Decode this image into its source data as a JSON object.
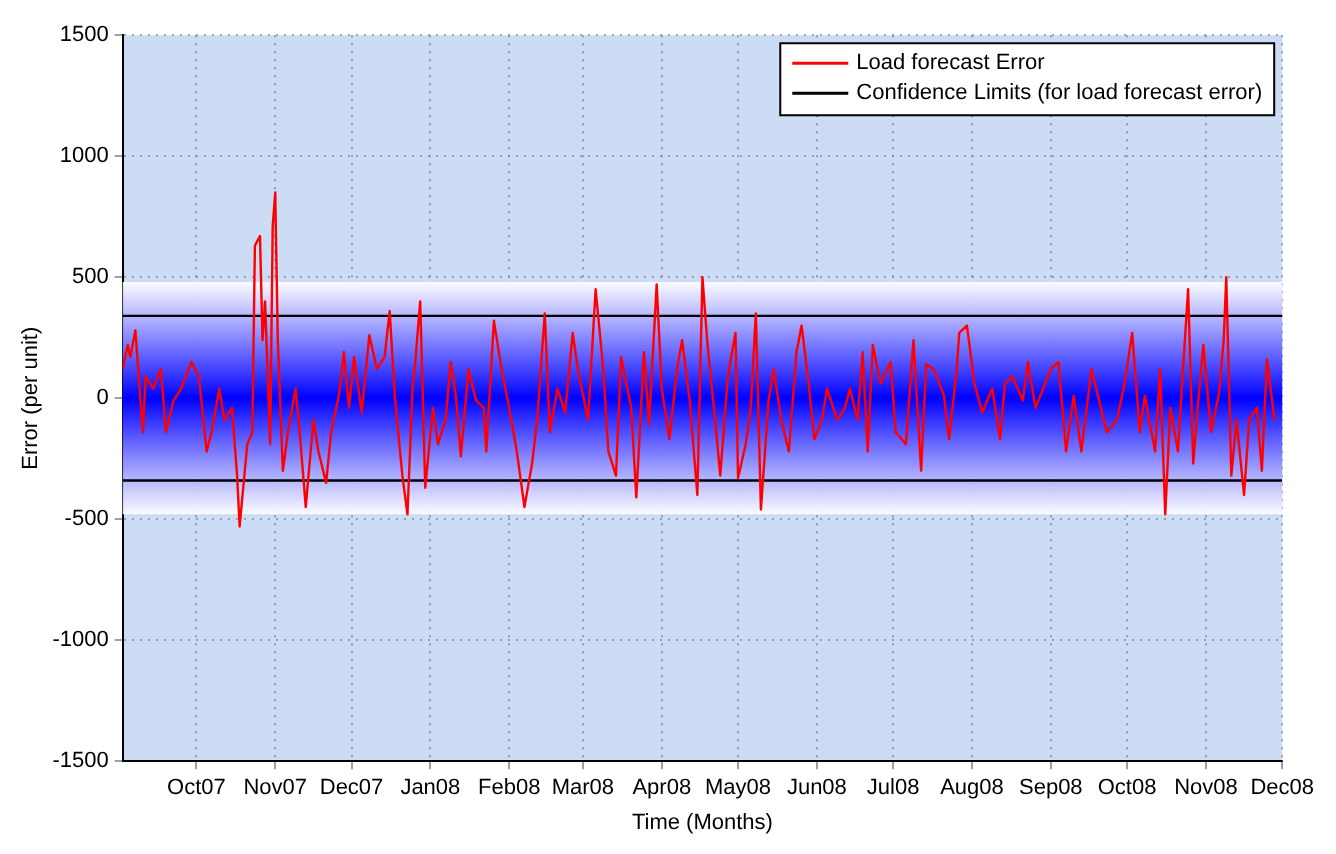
{
  "chart_data": {
    "type": "line",
    "xlabel": "Time (Months)",
    "ylabel": "Error (per unit)",
    "xlim": [
      "2007-09-02",
      "2008-12-01"
    ],
    "xticks": [
      {
        "value": "2007-10-01",
        "label": "Oct07"
      },
      {
        "value": "2007-11-01",
        "label": "Nov07"
      },
      {
        "value": "2007-12-01",
        "label": "Dec07"
      },
      {
        "value": "2008-01-01",
        "label": "Jan08"
      },
      {
        "value": "2008-02-01",
        "label": "Feb08"
      },
      {
        "value": "2008-03-01",
        "label": "Mar08"
      },
      {
        "value": "2008-04-01",
        "label": "Apr08"
      },
      {
        "value": "2008-05-01",
        "label": "May08"
      },
      {
        "value": "2008-06-01",
        "label": "Jun08"
      },
      {
        "value": "2008-07-01",
        "label": "Jul08"
      },
      {
        "value": "2008-08-01",
        "label": "Aug08"
      },
      {
        "value": "2008-09-01",
        "label": "Sep08"
      },
      {
        "value": "2008-10-01",
        "label": "Oct08"
      },
      {
        "value": "2008-11-01",
        "label": "Nov08"
      },
      {
        "value": "2008-12-01",
        "label": "Dec08"
      }
    ],
    "ylim": [
      -1500,
      1500
    ],
    "yticks": [
      -1500,
      -1000,
      -500,
      0,
      500,
      1000,
      1500
    ],
    "grid": true,
    "legend": "top right",
    "marker": "none",
    "line_style": "solid",
    "bands": [
      {
        "axis": "y",
        "from": -480,
        "to": 480,
        "color": "#0000ff"
      }
    ],
    "x": [
      "2007-09-02",
      "2007-09-04",
      "2007-09-05",
      "2007-09-07",
      "2007-09-09",
      "2007-09-10",
      "2007-09-11",
      "2007-09-14",
      "2007-09-17",
      "2007-09-19",
      "2007-09-22",
      "2007-09-25",
      "2007-09-29",
      "2007-10-02",
      "2007-10-05",
      "2007-10-07",
      "2007-10-10",
      "2007-10-12",
      "2007-10-15",
      "2007-10-17",
      "2007-10-18",
      "2007-10-21",
      "2007-10-23",
      "2007-10-24",
      "2007-10-26",
      "2007-10-27",
      "2007-10-28",
      "2007-10-30",
      "2007-10-31",
      "2007-11-01",
      "2007-11-02",
      "2007-11-04",
      "2007-11-06",
      "2007-11-09",
      "2007-11-11",
      "2007-11-13",
      "2007-11-16",
      "2007-11-18",
      "2007-11-21",
      "2007-11-23",
      "2007-11-26",
      "2007-11-28",
      "2007-11-30",
      "2007-12-02",
      "2007-12-05",
      "2007-12-08",
      "2007-12-11",
      "2007-12-14",
      "2007-12-16",
      "2007-12-18",
      "2007-12-21",
      "2007-12-23",
      "2007-12-25",
      "2007-12-26",
      "2007-12-28",
      "2007-12-30",
      "2008-01-02",
      "2008-01-04",
      "2008-01-07",
      "2008-01-09",
      "2008-01-11",
      "2008-01-13",
      "2008-01-16",
      "2008-01-19",
      "2008-01-22",
      "2008-01-23",
      "2008-01-26",
      "2008-01-29",
      "2008-02-01",
      "2008-02-04",
      "2008-02-07",
      "2008-02-10",
      "2008-02-12",
      "2008-02-15",
      "2008-02-17",
      "2008-02-20",
      "2008-02-23",
      "2008-02-26",
      "2008-02-28",
      "2008-03-03",
      "2008-03-06",
      "2008-03-09",
      "2008-03-11",
      "2008-03-14",
      "2008-03-16",
      "2008-03-20",
      "2008-03-22",
      "2008-03-25",
      "2008-03-27",
      "2008-03-30",
      "2008-04-01",
      "2008-04-04",
      "2008-04-07",
      "2008-04-09",
      "2008-04-12",
      "2008-04-15",
      "2008-04-17",
      "2008-04-19",
      "2008-04-22",
      "2008-04-24",
      "2008-04-27",
      "2008-04-30",
      "2008-05-01",
      "2008-05-04",
      "2008-05-06",
      "2008-05-08",
      "2008-05-10",
      "2008-05-13",
      "2008-05-15",
      "2008-05-18",
      "2008-05-21",
      "2008-05-24",
      "2008-05-26",
      "2008-05-29",
      "2008-05-31",
      "2008-06-03",
      "2008-06-05",
      "2008-06-09",
      "2008-06-12",
      "2008-06-14",
      "2008-06-17",
      "2008-06-19",
      "2008-06-21",
      "2008-06-23",
      "2008-06-26",
      "2008-06-30",
      "2008-07-02",
      "2008-07-06",
      "2008-07-09",
      "2008-07-12",
      "2008-07-14",
      "2008-07-17",
      "2008-07-21",
      "2008-07-23",
      "2008-07-26",
      "2008-07-27",
      "2008-07-30",
      "2008-08-02",
      "2008-08-05",
      "2008-08-09",
      "2008-08-12",
      "2008-08-14",
      "2008-08-17",
      "2008-08-21",
      "2008-08-23",
      "2008-08-26",
      "2008-08-29",
      "2008-09-01",
      "2008-09-04",
      "2008-09-07",
      "2008-09-10",
      "2008-09-13",
      "2008-09-17",
      "2008-09-20",
      "2008-09-23",
      "2008-09-27",
      "2008-09-30",
      "2008-10-03",
      "2008-10-06",
      "2008-10-08",
      "2008-10-12",
      "2008-10-14",
      "2008-10-16",
      "2008-10-18",
      "2008-10-21",
      "2008-10-23",
      "2008-10-25",
      "2008-10-27",
      "2008-10-29",
      "2008-10-31",
      "2008-11-03",
      "2008-11-06",
      "2008-11-08",
      "2008-11-09",
      "2008-11-11",
      "2008-11-13",
      "2008-11-16",
      "2008-11-18",
      "2008-11-21",
      "2008-11-23",
      "2008-11-25",
      "2008-11-28"
    ],
    "series": [
      {
        "name": "Load forecast Error",
        "color": "#ff0000",
        "values": [
          120,
          220,
          170,
          280,
          -10,
          -140,
          90,
          40,
          120,
          -140,
          -10,
          40,
          150,
          90,
          -220,
          -140,
          40,
          -90,
          -40,
          -320,
          -530,
          -190,
          -140,
          630,
          670,
          240,
          400,
          -190,
          710,
          850,
          240,
          -300,
          -140,
          40,
          -190,
          -450,
          -90,
          -220,
          -350,
          -140,
          10,
          190,
          -40,
          170,
          -60,
          260,
          120,
          170,
          360,
          10,
          -320,
          -480,
          40,
          140,
          400,
          -370,
          -40,
          -190,
          -90,
          150,
          10,
          -240,
          120,
          -10,
          -40,
          -220,
          320,
          120,
          -40,
          -220,
          -450,
          -270,
          -90,
          350,
          -140,
          40,
          -60,
          270,
          120,
          -90,
          450,
          120,
          -220,
          -320,
          170,
          -40,
          -410,
          190,
          -110,
          470,
          40,
          -170,
          120,
          240,
          -10,
          -400,
          500,
          220,
          -90,
          -320,
          90,
          270,
          -330,
          -190,
          -40,
          350,
          -460,
          -10,
          120,
          -90,
          -220,
          190,
          300,
          40,
          -170,
          -90,
          40,
          -90,
          -40,
          40,
          -90,
          190,
          -220,
          220,
          60,
          150,
          -140,
          -190,
          240,
          -300,
          140,
          120,
          10,
          -170,
          120,
          270,
          300,
          60,
          -60,
          40,
          -170,
          60,
          90,
          -10,
          150,
          -40,
          40,
          120,
          150,
          -220,
          10,
          -220,
          120,
          -10,
          -140,
          -90,
          60,
          270,
          -140,
          10,
          -220,
          120,
          -480,
          -40,
          -220,
          120,
          450,
          -270,
          -10,
          220,
          -140,
          10,
          240,
          500,
          -320,
          -90,
          -400,
          -90,
          -40,
          -300,
          160,
          -90
        ]
      },
      {
        "name": "Confidence Limits (for load forecast error)",
        "color": "#000000",
        "x": [
          "2007-09-02",
          "2008-12-01"
        ],
        "values": [
          340,
          340
        ]
      },
      {
        "color": "#000000",
        "x": [
          "2007-09-02",
          "2008-12-01"
        ],
        "values": [
          -340,
          -340
        ]
      }
    ]
  }
}
